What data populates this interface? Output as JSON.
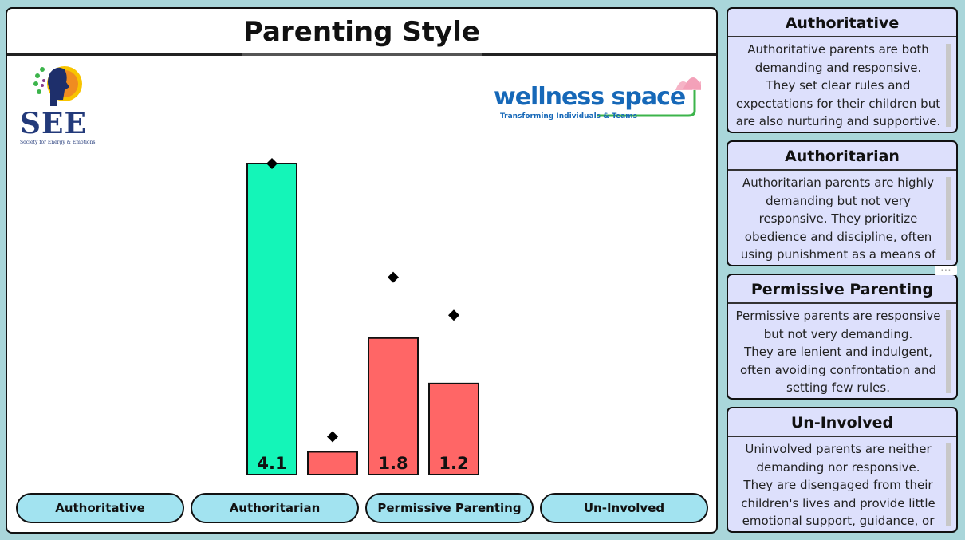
{
  "title": "Parenting Style",
  "logos": {
    "left": {
      "name": "SEE",
      "tagline": "Society for Energy & Emotions"
    },
    "right": {
      "name": "wellness space",
      "tagline": "Transforming Individuals & Teams"
    }
  },
  "chart_data": {
    "type": "bar",
    "categories": [
      "Authoritative",
      "Authoritarian",
      "Permissive Parenting",
      "Un-Involved"
    ],
    "values": [
      4.1,
      0.3,
      1.8,
      1.2
    ],
    "data_labels": [
      "4.1",
      "",
      "1.8",
      "1.2"
    ],
    "markers": [
      4.1,
      0.5,
      2.6,
      2.1
    ],
    "marker_shape": "diamond",
    "colors": [
      "#14f5b8",
      "#ff6666",
      "#ff6666",
      "#ff6666"
    ],
    "ylim": [
      0,
      4.3
    ],
    "grid": false
  },
  "buttons": [
    "Authoritative",
    "Authoritarian",
    "Permissive Parenting",
    "Un-Involved"
  ],
  "cards": [
    {
      "title": "Authoritative",
      "text": "Authoritative parents are both demanding and responsive.\nThey set clear rules and expectations for their children but are also nurturing and supportive."
    },
    {
      "title": "Authoritarian",
      "text": "Authoritarian parents are highly demanding but not very responsive. They prioritize obedience and discipline, often using punishment as a means of control."
    },
    {
      "title": "Permissive Parenting",
      "text": "Permissive parents are responsive but not very demanding.\nThey are lenient and indulgent, often avoiding confrontation and setting few rules."
    },
    {
      "title": "Un-Involved",
      "text": "Uninvolved parents are neither demanding nor responsive.\nThey are disengaged from their children's lives and provide little emotional support, guidance, or"
    }
  ],
  "more_label": "⋯"
}
